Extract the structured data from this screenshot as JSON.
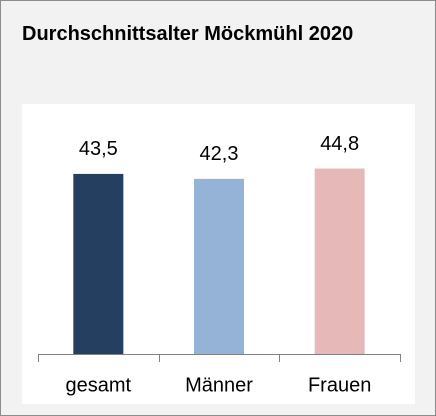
{
  "chart_data": {
    "type": "bar",
    "title": "Durchschnittsalter Möckmühl 2020",
    "categories": [
      "gesamt",
      "Männer",
      "Frauen"
    ],
    "values": [
      43.5,
      42.3,
      44.8
    ],
    "value_labels": [
      "43,5",
      "42,3",
      "44,8"
    ],
    "colors": [
      "#243f60",
      "#95b3d7",
      "#e6b9b8"
    ],
    "ylim": [
      0,
      50
    ]
  }
}
